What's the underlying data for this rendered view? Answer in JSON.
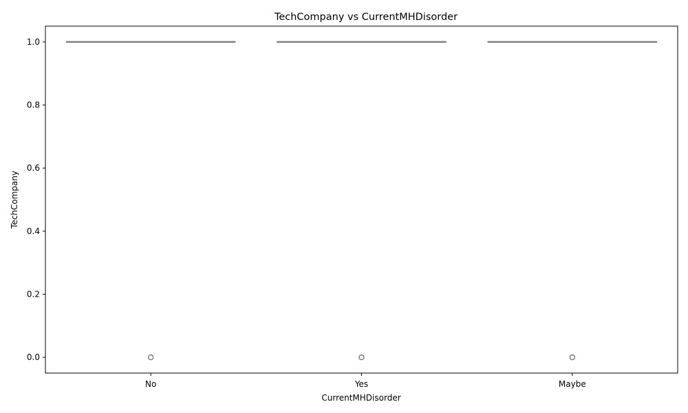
{
  "chart_data": {
    "type": "box",
    "title": "TechCompany vs CurrentMHDisorder",
    "xlabel": "CurrentMHDisorder",
    "ylabel": "TechCompany",
    "categories": [
      "No",
      "Yes",
      "Maybe"
    ],
    "ylim": [
      -0.05,
      1.05
    ],
    "yticks": [
      0.0,
      0.2,
      0.4,
      0.6,
      0.8,
      1.0
    ],
    "ytick_labels": [
      "0.0",
      "0.2",
      "0.4",
      "0.6",
      "0.8",
      "1.0"
    ],
    "boxes": [
      {
        "category": "No",
        "whisker_low": 1.0,
        "q1": 1.0,
        "median": 1.0,
        "q3": 1.0,
        "whisker_high": 1.0,
        "outliers": [
          0.0
        ]
      },
      {
        "category": "Yes",
        "whisker_low": 1.0,
        "q1": 1.0,
        "median": 1.0,
        "q3": 1.0,
        "whisker_high": 1.0,
        "outliers": [
          0.0
        ]
      },
      {
        "category": "Maybe",
        "whisker_low": 1.0,
        "q1": 1.0,
        "median": 1.0,
        "q3": 1.0,
        "whisker_high": 1.0,
        "outliers": [
          0.0
        ]
      }
    ],
    "grid": false,
    "colors": {
      "box": "#7f7f7f",
      "axis": "#000000"
    }
  }
}
